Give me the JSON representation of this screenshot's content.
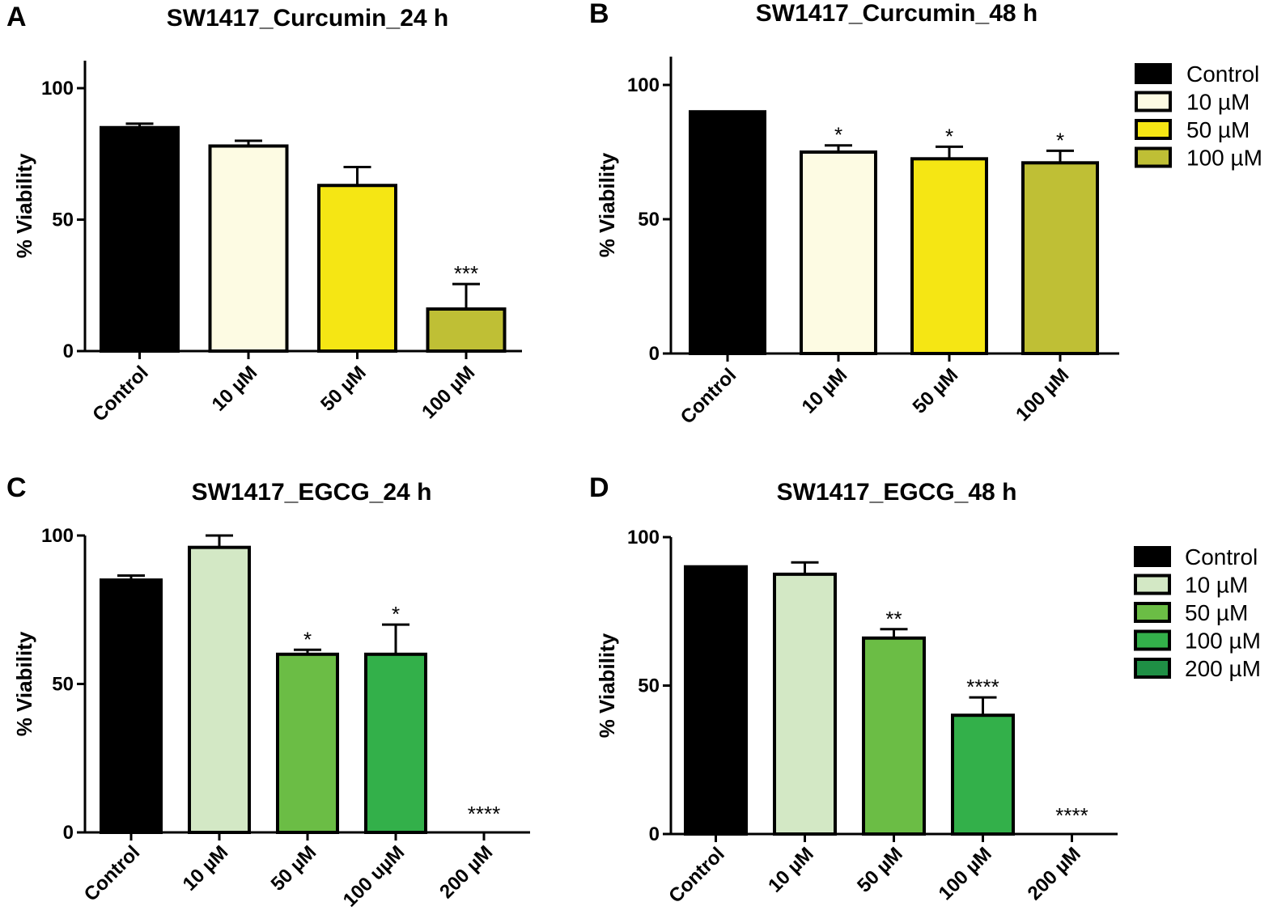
{
  "chart_data": [
    {
      "panel": "A",
      "type": "bar",
      "title": "SW1417_Curcumin_24 h",
      "ylabel": "% Viability",
      "ylim": [
        0,
        110
      ],
      "yticks": [
        0,
        50,
        100
      ],
      "categories": [
        "Control",
        "10 µM",
        "50 µM",
        "100 µM"
      ],
      "values": [
        85,
        78,
        63,
        16
      ],
      "errors": [
        1.5,
        2,
        7,
        9.5
      ],
      "significance": [
        "",
        "",
        "",
        "***"
      ],
      "colors": [
        "#000000",
        "#fdfbe3",
        "#f5e614",
        "#bfbf35"
      ],
      "legend": null
    },
    {
      "panel": "B",
      "type": "bar",
      "title": "SW1417_Curcumin_48 h",
      "ylabel": "% Viability",
      "ylim": [
        0,
        110
      ],
      "yticks": [
        0,
        50,
        100
      ],
      "categories": [
        "Control",
        "10 µM",
        "50 µM",
        "100 µM"
      ],
      "values": [
        90,
        75,
        72.5,
        71
      ],
      "errors": [
        0,
        2.5,
        4.5,
        4.5
      ],
      "significance": [
        "",
        "*",
        "*",
        "*"
      ],
      "colors": [
        "#000000",
        "#fdfbe3",
        "#f5e614",
        "#bfbf35"
      ],
      "legend": {
        "placement": "right",
        "entries": [
          "Control",
          "10 µM",
          "50 µM",
          "100 µM"
        ]
      }
    },
    {
      "panel": "C",
      "type": "bar",
      "title": "SW1417_EGCG_24 h",
      "ylabel": "% Viability",
      "ylim": [
        0,
        100
      ],
      "yticks": [
        0,
        50,
        100
      ],
      "categories": [
        "Control",
        "10 µM",
        "50 µM",
        "100 uµM",
        "200 µM"
      ],
      "values": [
        85,
        96,
        60,
        60,
        0
      ],
      "errors": [
        1.5,
        4,
        1.5,
        10,
        0
      ],
      "significance": [
        "",
        "",
        "*",
        "*",
        "****"
      ],
      "colors": [
        "#000000",
        "#d3e8c5",
        "#6bbd45",
        "#33b04a",
        "#1f8f45"
      ],
      "legend": null
    },
    {
      "panel": "D",
      "type": "bar",
      "title": "SW1417_EGCG_48 h",
      "ylabel": "% Viability",
      "ylim": [
        0,
        100
      ],
      "yticks": [
        0,
        50,
        100
      ],
      "categories": [
        "Control",
        "10 µM",
        "50 µM",
        "100 µM",
        "200 µM"
      ],
      "values": [
        90,
        87.5,
        66,
        40,
        0
      ],
      "errors": [
        0,
        4,
        3,
        6,
        0
      ],
      "significance": [
        "",
        "",
        "**",
        "****",
        "****"
      ],
      "colors": [
        "#000000",
        "#d3e8c5",
        "#6bbd45",
        "#33b04a",
        "#1f8f45"
      ],
      "legend": {
        "placement": "right",
        "entries": [
          "Control",
          "10 µM",
          "50 µM",
          "100 µM",
          "200 µM"
        ]
      }
    }
  ]
}
